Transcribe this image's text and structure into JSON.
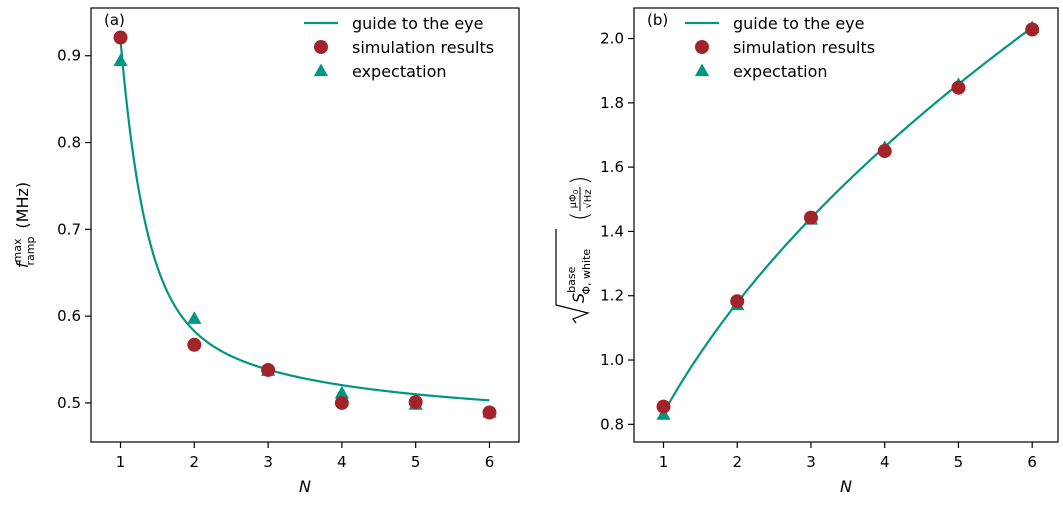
{
  "colors": {
    "guide": "#009682",
    "simulation": "#a3232a",
    "expectation": "#009682",
    "axis": "#000000"
  },
  "chart_data": [
    {
      "type": "scatter",
      "panel_label": "(a)",
      "xlabel": "N",
      "ylabel": {
        "symbol": "f",
        "superscript": "max",
        "subscript": "ramp",
        "unit": "(MHz)"
      },
      "xlim": [
        0.6,
        6.4
      ],
      "ylim": [
        0.455,
        0.955
      ],
      "xticks": [
        1,
        2,
        3,
        4,
        5,
        6
      ],
      "yticks": [
        0.5,
        0.6,
        0.7,
        0.8,
        0.9
      ],
      "ytick_labels": [
        "0.5",
        "0.6",
        "0.7",
        "0.8",
        "0.9"
      ],
      "legend_position": "top-right",
      "series": [
        {
          "name": "guide to the eye",
          "kind": "line",
          "model": {
            "a": 0.4622,
            "b": 0.4315,
            "c": 0.1582
          }
        },
        {
          "name": "simulation results",
          "kind": "circle",
          "x": [
            1,
            2,
            3,
            4,
            5,
            6
          ],
          "y": [
            0.921,
            0.567,
            0.538,
            0.5,
            0.501,
            0.489
          ]
        },
        {
          "name": "expectation",
          "kind": "triangle",
          "x": [
            1,
            2,
            3,
            4,
            5,
            6
          ],
          "y": [
            0.894,
            0.597,
            0.537,
            0.511,
            0.498,
            0.489
          ]
        }
      ]
    },
    {
      "type": "scatter",
      "panel_label": "(b)",
      "xlabel": "N",
      "ylabel": {
        "base": "S",
        "superscript": "base",
        "subscript": "Φ, white",
        "unit_num": "μΦ",
        "unit_num_sub": "0",
        "unit_den": "√Hz"
      },
      "xlim": [
        0.6,
        6.35
      ],
      "ylim": [
        0.745,
        2.095
      ],
      "xticks": [
        1,
        2,
        3,
        4,
        5,
        6
      ],
      "yticks": [
        0.8,
        1.0,
        1.2,
        1.4,
        1.6,
        1.8,
        2.0
      ],
      "ytick_labels": [
        "0.8",
        "1.0",
        "1.2",
        "1.4",
        "1.6",
        "1.8",
        "2.0"
      ],
      "legend_position": "top-left",
      "series": [
        {
          "name": "guide to the eye",
          "kind": "line",
          "model": {
            "k": 0.835,
            "p": 0.497
          }
        },
        {
          "name": "simulation results",
          "kind": "circle",
          "x": [
            1,
            2,
            3,
            4,
            5,
            6
          ],
          "y": [
            0.855,
            1.183,
            1.443,
            1.65,
            1.847,
            2.028
          ]
        },
        {
          "name": "expectation",
          "kind": "triangle",
          "x": [
            1,
            2,
            3,
            4,
            5,
            6
          ],
          "y": [
            0.83,
            1.171,
            1.437,
            1.66,
            1.856,
            2.033
          ]
        }
      ]
    }
  ]
}
